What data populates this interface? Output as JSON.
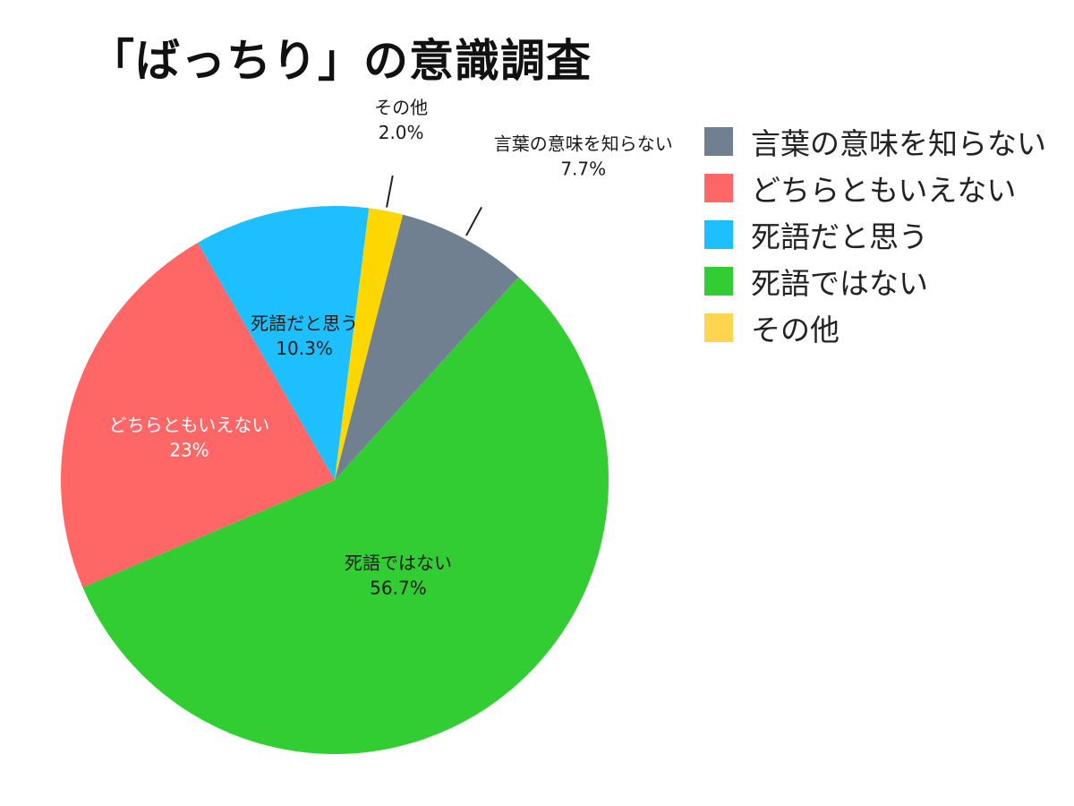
{
  "chart_data": {
    "type": "pie",
    "title": "「ばっちり」の意識調査",
    "legend_position": "right",
    "slices": [
      {
        "label": "言葉の意味を知らない",
        "value": 7.7,
        "value_label": "7.7%",
        "color": "#708090"
      },
      {
        "label": "死語ではない",
        "value": 56.7,
        "value_label": "56.7%",
        "color": "#32CD32"
      },
      {
        "label": "どちらともいえない",
        "value": 23,
        "value_label": "23%",
        "color": "#FF6666"
      },
      {
        "label": "死語だと思う",
        "value": 10.3,
        "value_label": "10.3%",
        "color": "#1EBFFF"
      },
      {
        "label": "その他",
        "value": 2.0,
        "value_label": "2.0%",
        "color": "#FFD700"
      }
    ],
    "legend": [
      {
        "label": "言葉の意味を知らない",
        "color": "#708090"
      },
      {
        "label": "どちらともいえない",
        "color": "#FF6666"
      },
      {
        "label": "死語だと思う",
        "color": "#1EBFFF"
      },
      {
        "label": "死語ではない",
        "color": "#32CD32"
      },
      {
        "label": "その他",
        "color": "#FFD54F"
      }
    ]
  }
}
